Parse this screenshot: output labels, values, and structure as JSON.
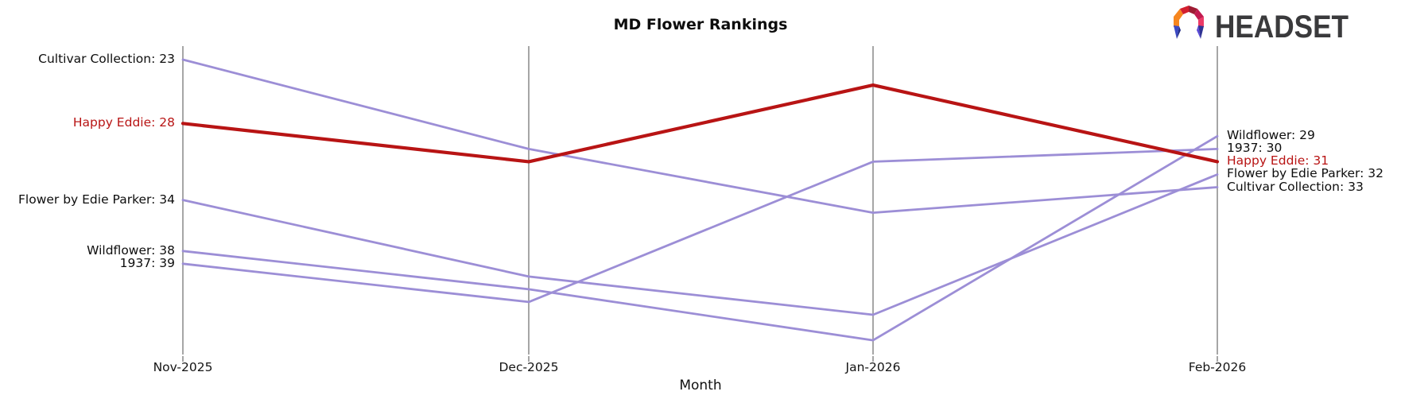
{
  "title": "MD Flower Rankings",
  "xlabel": "Month",
  "logo": {
    "text": "HEADSET",
    "text_color": "#3a3a3c",
    "icon_colors": [
      "#f6861f",
      "#d31f2f",
      "#9e1b33",
      "#c21a4f",
      "#ec3a67",
      "#2f3293",
      "#5a4ad8",
      "#3b49c4",
      "#232d86"
    ]
  },
  "colors": {
    "line_default": "#9c8ed6",
    "line_highlight": "#b81414",
    "label_highlight": "#b81414",
    "axis": "#a6a6a6",
    "text": "#0d0d0d"
  },
  "chart_data": {
    "type": "line",
    "subtype": "bump-ranking",
    "title": "MD Flower Rankings",
    "xlabel": "Month",
    "categories": [
      "Nov-2025",
      "Dec-2025",
      "Jan-2026",
      "Feb-2026"
    ],
    "yaxis": {
      "note": "rank, best (lowest number) at top, axis not labeled",
      "top_rank_shown": 23,
      "bottom_rank_shown": 45,
      "inverted": true
    },
    "legend": "none (series labeled at line endpoints)",
    "grid": "vertical axis line per month",
    "series": [
      {
        "name": "Cultivar Collection",
        "values": [
          23,
          30,
          35,
          33
        ],
        "highlight": false,
        "start_label": "Cultivar Collection: 23",
        "end_label": "Cultivar Collection: 33"
      },
      {
        "name": "Happy Eddie",
        "values": [
          28,
          31,
          25,
          31
        ],
        "highlight": true,
        "start_label": "Happy Eddie: 28",
        "end_label": "Happy Eddie: 31"
      },
      {
        "name": "Flower by Edie Parker",
        "values": [
          34,
          40,
          43,
          32
        ],
        "highlight": false,
        "start_label": "Flower by Edie Parker: 34",
        "end_label": "Flower by Edie Parker: 32"
      },
      {
        "name": "Wildflower",
        "values": [
          38,
          41,
          45,
          29
        ],
        "highlight": false,
        "start_label": "Wildflower: 38",
        "end_label": "Wildflower: 29"
      },
      {
        "name": "1937",
        "values": [
          39,
          42,
          31,
          30
        ],
        "highlight": false,
        "start_label": "1937: 39",
        "end_label": "1937: 30"
      }
    ]
  }
}
